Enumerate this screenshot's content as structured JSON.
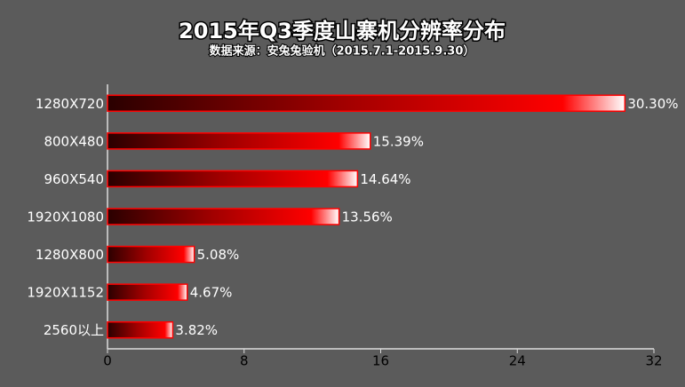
{
  "chart_data": {
    "type": "bar",
    "orientation": "horizontal",
    "title": "2015年Q3季度山寨机分辨率分布",
    "subtitle": "数据来源：安兔兔验机（2015.7.1-2015.9.30）",
    "categories": [
      "1280X720",
      "800X480",
      "960X540",
      "1920X1080",
      "1280X800",
      "1920X1152",
      "2560以上"
    ],
    "values": [
      30.3,
      15.39,
      14.64,
      13.56,
      5.08,
      4.67,
      3.82
    ],
    "value_labels": [
      "30.30%",
      "15.39%",
      "14.64%",
      "13.56%",
      "5.08%",
      "4.67%",
      "3.82%"
    ],
    "color": "#ff0000",
    "xlim": [
      0,
      32
    ],
    "xticks": [
      0,
      8,
      16,
      24,
      32
    ]
  }
}
